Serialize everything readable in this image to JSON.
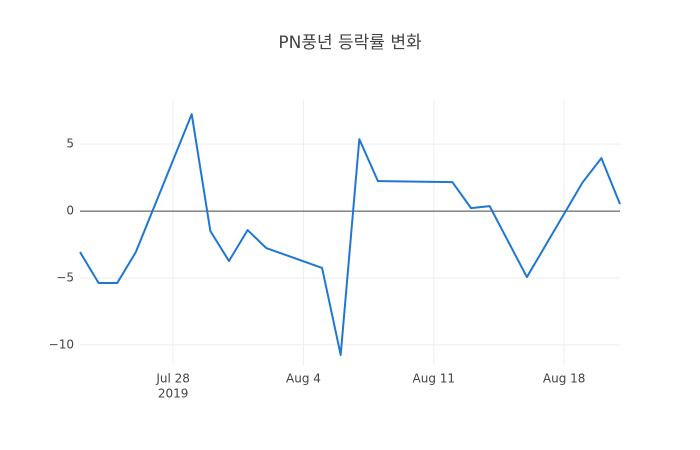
{
  "chart_data": {
    "type": "line",
    "title": "PN풍년 등락률 변화",
    "x": [
      "2019-07-23",
      "2019-07-24",
      "2019-07-25",
      "2019-07-26",
      "2019-07-29",
      "2019-07-30",
      "2019-07-31",
      "2019-08-01",
      "2019-08-02",
      "2019-08-05",
      "2019-08-06",
      "2019-08-07",
      "2019-08-08",
      "2019-08-12",
      "2019-08-13",
      "2019-08-14",
      "2019-08-16",
      "2019-08-19",
      "2019-08-20",
      "2019-08-21"
    ],
    "series": [
      {
        "color": "#1f77d4",
        "values": [
          -3.06,
          -5.37,
          -5.37,
          -3.06,
          7.24,
          -1.49,
          -3.73,
          -1.42,
          -2.76,
          -4.25,
          -10.75,
          5.37,
          2.24,
          2.16,
          0.22,
          0.37,
          -4.93,
          2.16,
          3.96,
          0.52
        ]
      }
    ],
    "xlim": [
      "2019-07-23",
      "2019-08-21"
    ],
    "xticks": [
      {
        "value": "2019-07-28",
        "label": "Jul 28"
      },
      {
        "value": "2019-08-04",
        "label": "Aug 4"
      },
      {
        "value": "2019-08-11",
        "label": "Aug 11"
      },
      {
        "value": "2019-08-18",
        "label": "Aug 18"
      }
    ],
    "x_year_label": "2019",
    "ylim": [
      -11.5,
      8.3
    ],
    "yticks": [
      {
        "value": -10,
        "label": "−10"
      },
      {
        "value": -5,
        "label": "−5"
      },
      0,
      5
    ],
    "grid": true
  }
}
